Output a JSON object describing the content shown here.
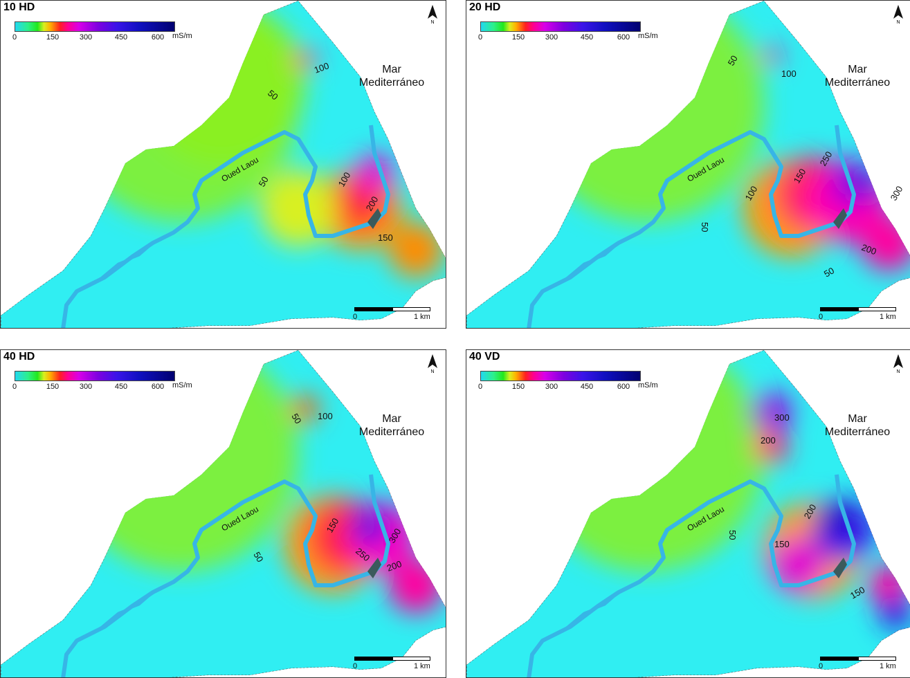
{
  "legend": {
    "ticks": [
      "0",
      "150",
      "300",
      "450",
      "600"
    ],
    "unit": "mS/m"
  },
  "sea_label_1": "Mar",
  "sea_label_2": "Mediterráneo",
  "river_label": "Oued Laou",
  "scale": {
    "start": "0",
    "end": "1 km"
  },
  "north_label": "N",
  "panels": [
    {
      "title": "10 HD",
      "contours": [
        "100",
        "50",
        "50",
        "100",
        "200",
        "150"
      ]
    },
    {
      "title": "20 HD",
      "contours": [
        "50",
        "100",
        "150",
        "250",
        "300",
        "100",
        "50",
        "200",
        "50"
      ]
    },
    {
      "title": "40 HD",
      "contours": [
        "50",
        "100",
        "150",
        "50",
        "250",
        "300",
        "200"
      ]
    },
    {
      "title": "40 VD",
      "contours": [
        "200",
        "300",
        "50",
        "200",
        "150",
        "150"
      ]
    }
  ],
  "colors": {
    "low": "#22e8f0",
    "mid": "#3cf02a",
    "high": "#ff0090",
    "max": "#1010c0",
    "river": "#37b5e6"
  }
}
